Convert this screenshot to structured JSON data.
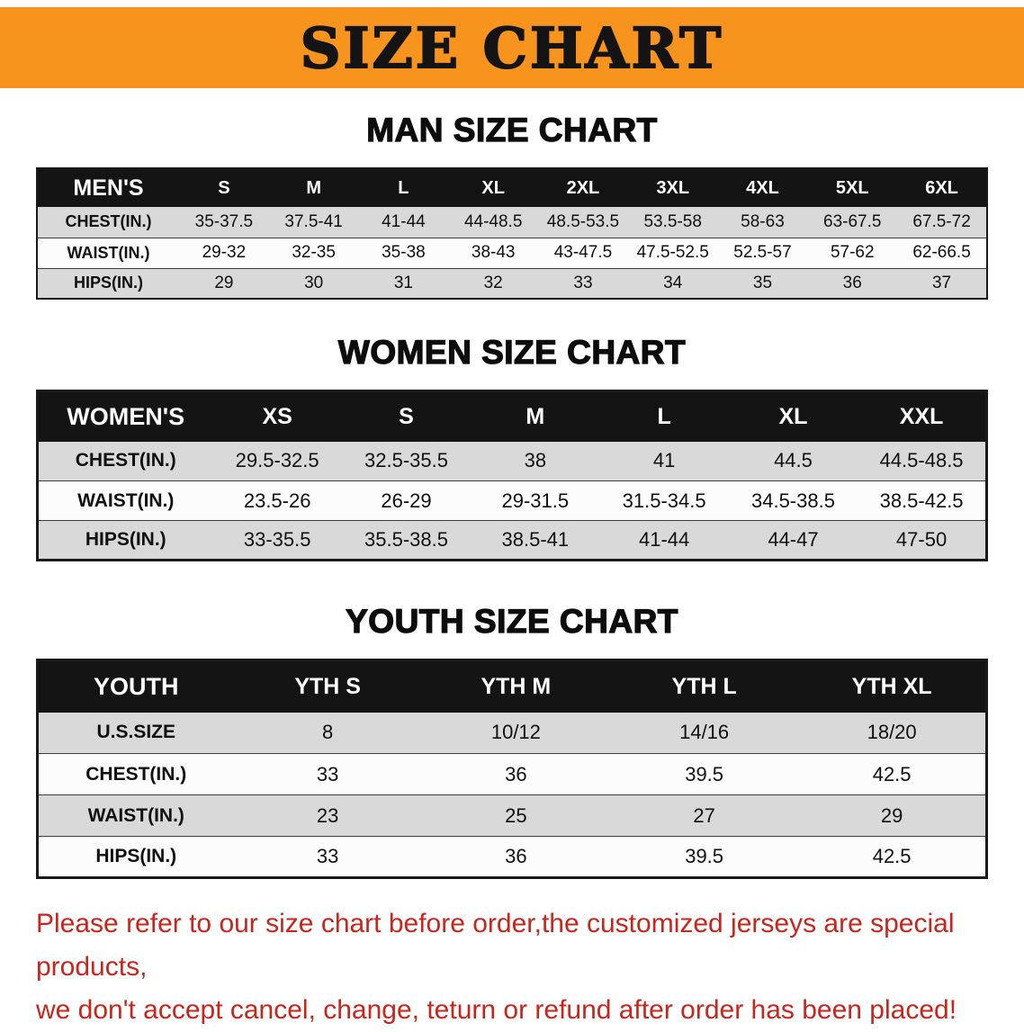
{
  "banner": {
    "title": "SIZE CHART"
  },
  "sections": {
    "men": {
      "heading": "MAN SIZE CHART",
      "table": {
        "header": [
          "MEN'S",
          "S",
          "M",
          "L",
          "XL",
          "2XL",
          "3XL",
          "4XL",
          "5XL",
          "6XL"
        ],
        "rows": [
          [
            "CHEST(IN.)",
            "35-37.5",
            "37.5-41",
            "41-44",
            "44-48.5",
            "48.5-53.5",
            "53.5-58",
            "58-63",
            "63-67.5",
            "67.5-72"
          ],
          [
            "WAIST(IN.)",
            "29-32",
            "32-35",
            "35-38",
            "38-43",
            "43-47.5",
            "47.5-52.5",
            "52.5-57",
            "57-62",
            "62-66.5"
          ],
          [
            "HIPS(IN.)",
            "29",
            "30",
            "31",
            "32",
            "33",
            "34",
            "35",
            "36",
            "37"
          ]
        ]
      }
    },
    "women": {
      "heading": "WOMEN SIZE CHART",
      "table": {
        "header": [
          "WOMEN'S",
          "XS",
          "S",
          "M",
          "L",
          "XL",
          "XXL"
        ],
        "rows": [
          [
            "CHEST(IN.)",
            "29.5-32.5",
            "32.5-35.5",
            "38",
            "41",
            "44.5",
            "44.5-48.5"
          ],
          [
            "WAIST(IN.)",
            "23.5-26",
            "26-29",
            "29-31.5",
            "31.5-34.5",
            "34.5-38.5",
            "38.5-42.5"
          ],
          [
            "HIPS(IN.)",
            "33-35.5",
            "35.5-38.5",
            "38.5-41",
            "41-44",
            "44-47",
            "47-50"
          ]
        ]
      }
    },
    "youth": {
      "heading": "YOUTH SIZE CHART",
      "table": {
        "header": [
          "YOUTH",
          "YTH S",
          "YTH M",
          "YTH L",
          "YTH XL"
        ],
        "rows": [
          [
            "U.S.SIZE",
            "8",
            "10/12",
            "14/16",
            "18/20"
          ],
          [
            "CHEST(IN.)",
            "33",
            "36",
            "39.5",
            "42.5"
          ],
          [
            "WAIST(IN.)",
            "23",
            "25",
            "27",
            "29"
          ],
          [
            "HIPS(IN.)",
            "33",
            "36",
            "39.5",
            "42.5"
          ]
        ]
      }
    }
  },
  "disclaimer": {
    "line1": "Please refer to our size chart before order,the customized jerseys are special products,",
    "line2": "we don't accept cancel, change, teturn or refund after order has been placed!"
  },
  "colors": {
    "banner_orange": "#F7941D",
    "table_header_black": "#141414",
    "row_gray": "#D9D9D9",
    "row_white": "#FCFCFC",
    "disclaimer_red": "#C9251C"
  }
}
